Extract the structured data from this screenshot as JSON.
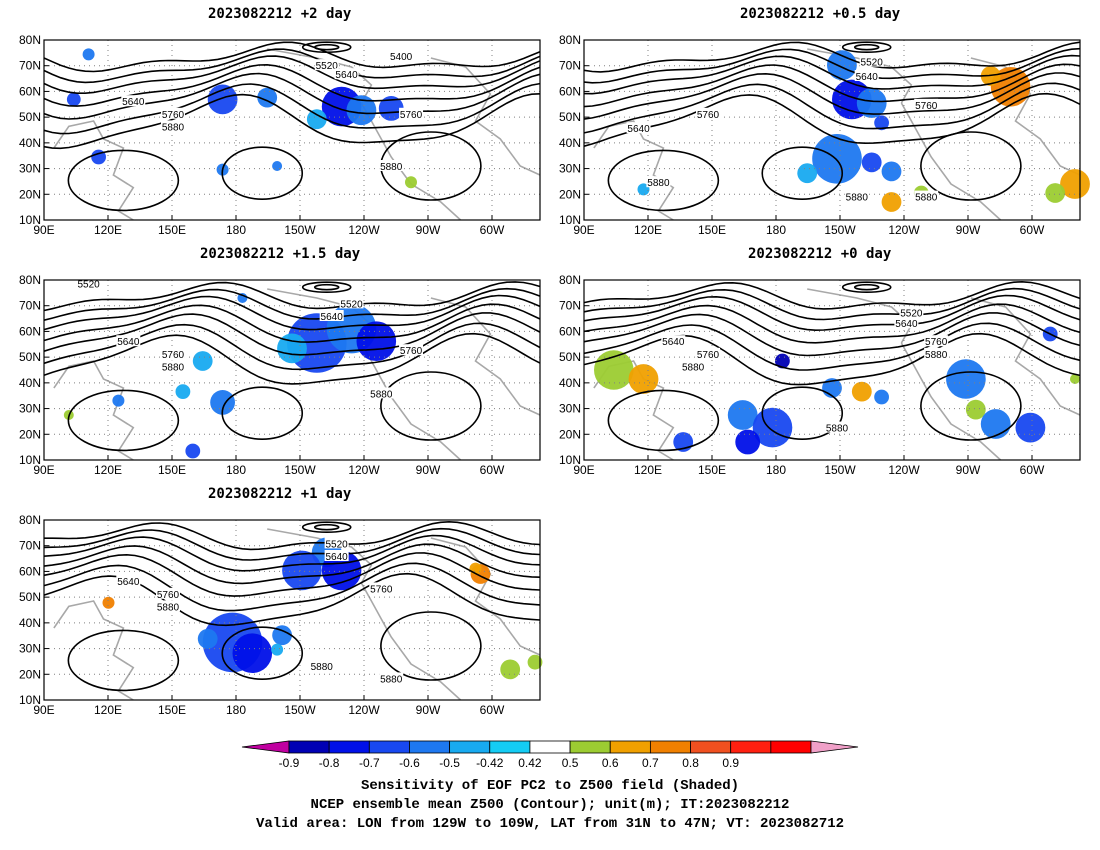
{
  "figure": {
    "panels": [
      {
        "id": "p1",
        "title": "2023082212 +2 day",
        "contour_labels": [
          "5400",
          "5520",
          "5640",
          "5640",
          "5760",
          "5760",
          "5880",
          "5880"
        ]
      },
      {
        "id": "p2",
        "title": "2023082212 +0.5 day",
        "contour_labels": [
          "5520",
          "5640",
          "5640",
          "5760",
          "5760",
          "5880",
          "5880",
          "5880"
        ]
      },
      {
        "id": "p3",
        "title": "2023082212 +1.5 day",
        "contour_labels": [
          "5520",
          "5520",
          "5640",
          "5640",
          "5760",
          "5760",
          "5880",
          "5880"
        ]
      },
      {
        "id": "p4",
        "title": "2023082212 +0 day",
        "contour_labels": [
          "5520",
          "5640",
          "5640",
          "5760",
          "5760",
          "5880",
          "5880",
          "5880"
        ]
      },
      {
        "id": "p5",
        "title": "2023082212 +1 day",
        "contour_labels": [
          "5520",
          "5640",
          "5640",
          "5760",
          "5760",
          "5880",
          "5880",
          "5880"
        ]
      }
    ],
    "map_axes": {
      "x_ticks": [
        "90E",
        "120E",
        "150E",
        "180",
        "150W",
        "120W",
        "90W",
        "60W"
      ],
      "y_ticks": [
        "80N",
        "70N",
        "60N",
        "50N",
        "40N",
        "30N",
        "20N",
        "10N"
      ]
    },
    "colorbar": {
      "ticks": [
        "-0.9",
        "-0.8",
        "-0.7",
        "-0.6",
        "-0.5",
        "-0.42",
        "0.42",
        "0.5",
        "0.6",
        "0.7",
        "0.8",
        "0.9"
      ],
      "colors": [
        "#c000a0",
        "#0000b4",
        "#0010e8",
        "#1848f0",
        "#1e78f0",
        "#18aaf0",
        "#14ccf4",
        "#ffffff",
        "#9ccc32",
        "#f0a000",
        "#f08000",
        "#f05020",
        "#ff2010",
        "#ff0000",
        "#f0a0c8"
      ]
    },
    "caption": {
      "line1": "Sensitivity of EOF PC2 to Z500 field (Shaded)",
      "line2": "NCEP ensemble mean Z500 (Contour); unit(m); IT:2023082212",
      "line3": "Valid area: LON from 129W to 109W, LAT from 31N to 47N; VT: 2023082712"
    },
    "colors": {
      "contour": "#000000",
      "coast": "#a8a8a8",
      "grid": "#808080"
    }
  }
}
